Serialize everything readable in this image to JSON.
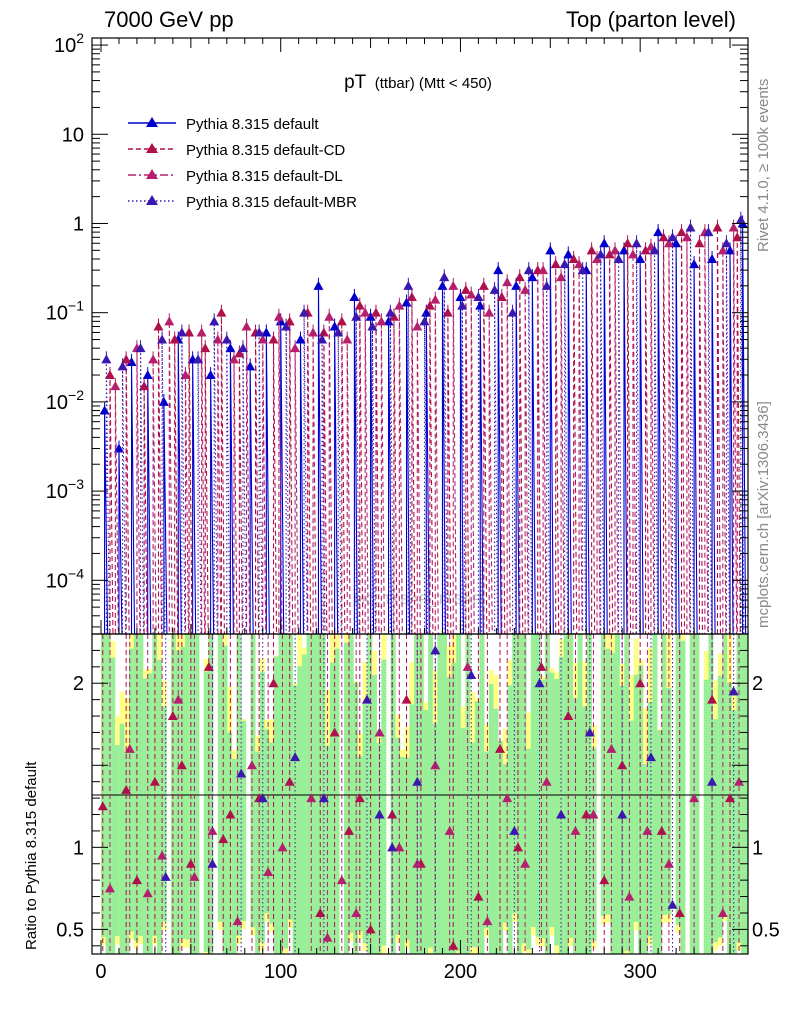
{
  "chart_data": {
    "type": "line",
    "header": {
      "left": "7000 GeV pp",
      "right": "Top (parton level)"
    },
    "title_main": "pT",
    "title_sub": "(ttbar) (Mtt < 450)",
    "side_texts": {
      "rivet": "Rivet 4.1.0, ≥ 100k events",
      "mcplots": "mcplots.cern.ch [arXiv:1306.3436]"
    },
    "watermark": "MC_TTBAR_TTBAR",
    "xlim": [
      -5,
      360
    ],
    "xticks": [
      0,
      100,
      200,
      300
    ],
    "main_ylim": [
      2.5e-05,
      120
    ],
    "main_yscale": "log",
    "main_ytick_labels": [
      {
        "v": 100,
        "base": "10",
        "exp": "2"
      },
      {
        "v": 10,
        "base": "10",
        "exp": ""
      },
      {
        "v": 1,
        "base": "1",
        "exp": ""
      },
      {
        "v": 0.1,
        "base": "10",
        "exp": "−1"
      },
      {
        "v": 0.01,
        "base": "10",
        "exp": "−2"
      },
      {
        "v": 0.001,
        "base": "10",
        "exp": "−3"
      },
      {
        "v": 0.0001,
        "base": "10",
        "exp": "−4"
      }
    ],
    "ratio_ylabel": "Ratio to Pythia 8.315 default",
    "ratio_ylim": [
      0.35,
      2.3
    ],
    "ratio_yticks": [
      0.5,
      1,
      2
    ],
    "ratio_ytick_labels": [
      "0.5",
      "1",
      "2"
    ],
    "series": [
      {
        "name": "Pythia 8.315 default",
        "color": "#0000cc",
        "style": "solid",
        "x": [
          2,
          10,
          17,
          26,
          35,
          43,
          51,
          61,
          72,
          83,
          92,
          100,
          111,
          121,
          130,
          141,
          150,
          160,
          170,
          181,
          190,
          200,
          211,
          221,
          231,
          240,
          250,
          260,
          270,
          280,
          291,
          300,
          310,
          320,
          330,
          340,
          350,
          357
        ],
        "y": [
          0.008,
          0.003,
          0.028,
          0.02,
          0.01,
          0.05,
          0.03,
          0.02,
          0.04,
          0.025,
          0.06,
          0.08,
          0.05,
          0.2,
          0.07,
          0.15,
          0.09,
          0.08,
          0.13,
          0.1,
          0.2,
          0.15,
          0.12,
          0.3,
          0.2,
          0.25,
          0.5,
          0.45,
          0.3,
          0.6,
          0.5,
          0.4,
          0.8,
          0.6,
          0.35,
          0.4,
          0.5,
          1.0
        ]
      },
      {
        "name": "Pythia 8.315 default-CD",
        "color": "#b0104a",
        "style": "dashed",
        "x": [
          5,
          14,
          24,
          32,
          41,
          49,
          58,
          67,
          77,
          86,
          96,
          105,
          115,
          124,
          134,
          144,
          153,
          163,
          173,
          183,
          193,
          203,
          213,
          223,
          233,
          243,
          253,
          263,
          273,
          283,
          293,
          303,
          313,
          323,
          333,
          343,
          354
        ],
        "y": [
          0.02,
          0.03,
          0.015,
          0.07,
          0.05,
          0.06,
          0.04,
          0.1,
          0.035,
          0.06,
          0.05,
          0.08,
          0.1,
          0.06,
          0.08,
          0.12,
          0.1,
          0.09,
          0.15,
          0.12,
          0.1,
          0.18,
          0.2,
          0.15,
          0.25,
          0.3,
          0.35,
          0.4,
          0.5,
          0.45,
          0.6,
          0.5,
          0.7,
          0.8,
          0.6,
          0.9,
          0.7
        ]
      },
      {
        "name": "Pythia 8.315 default-DL",
        "color": "#b5206e",
        "style": "dashed",
        "x": [
          8,
          20,
          29,
          38,
          47,
          56,
          65,
          74,
          81,
          90,
          99,
          108,
          118,
          127,
          137,
          147,
          156,
          166,
          176,
          186,
          196,
          206,
          216,
          226,
          236,
          246,
          256,
          266,
          276,
          286,
          296,
          306,
          316,
          326,
          336,
          346,
          352
        ],
        "y": [
          0.015,
          0.04,
          0.03,
          0.08,
          0.02,
          0.06,
          0.05,
          0.03,
          0.07,
          0.05,
          0.09,
          0.04,
          0.06,
          0.09,
          0.05,
          0.1,
          0.08,
          0.12,
          0.07,
          0.14,
          0.2,
          0.16,
          0.1,
          0.22,
          0.18,
          0.3,
          0.25,
          0.35,
          0.4,
          0.5,
          0.45,
          0.55,
          0.6,
          0.7,
          0.8,
          0.5,
          0.9
        ]
      },
      {
        "name": "Pythia 8.315 default-MBR",
        "color": "#3a18b0",
        "style": "dotted",
        "x": [
          3,
          12,
          22,
          34,
          45,
          54,
          63,
          70,
          79,
          88,
          103,
          113,
          123,
          132,
          142,
          151,
          161,
          171,
          180,
          191,
          201,
          210,
          219,
          229,
          238,
          248,
          258,
          268,
          278,
          288,
          298,
          308,
          318,
          328,
          338,
          348,
          356
        ],
        "y": [
          0.03,
          0.025,
          0.04,
          0.05,
          0.06,
          0.03,
          0.08,
          0.05,
          0.04,
          0.06,
          0.07,
          0.1,
          0.05,
          0.06,
          0.09,
          0.07,
          0.1,
          0.2,
          0.08,
          0.25,
          0.12,
          0.15,
          0.18,
          0.1,
          0.3,
          0.2,
          0.35,
          0.3,
          0.45,
          0.4,
          0.6,
          0.5,
          0.7,
          0.9,
          0.8,
          0.6,
          1.1
        ]
      }
    ],
    "ratio_series": [
      {
        "name": "Pythia 8.315 default-CD",
        "color": "#b0104a",
        "x": [
          1,
          14,
          20,
          30,
          40,
          45,
          50,
          60,
          68,
          72,
          88,
          96,
          105,
          122,
          130,
          138,
          144,
          150,
          162,
          170,
          178,
          196,
          210,
          222,
          232,
          245,
          260,
          270,
          280,
          290,
          300,
          312,
          322,
          340,
          350
        ],
        "y": [
          1.25,
          1.35,
          0.8,
          1.4,
          1.8,
          1.5,
          0.9,
          2.1,
          1.05,
          1.2,
          1.3,
          2.0,
          1.4,
          0.6,
          1.7,
          1.1,
          1.3,
          0.5,
          1.2,
          1.9,
          0.9,
          0.4,
          0.7,
          1.6,
          1.0,
          2.1,
          1.8,
          1.2,
          0.8,
          1.5,
          2.0,
          1.1,
          0.6,
          1.9,
          1.3
        ]
      },
      {
        "name": "Pythia 8.315 default-DL",
        "color": "#b5206e",
        "x": [
          5,
          16,
          26,
          34,
          43,
          52,
          62,
          76,
          84,
          93,
          101,
          117,
          126,
          134,
          142,
          155,
          166,
          176,
          186,
          194,
          204,
          215,
          226,
          236,
          248,
          264,
          274,
          284,
          294,
          304,
          316,
          330,
          346,
          355
        ],
        "y": [
          0.75,
          1.6,
          0.72,
          0.95,
          1.9,
          0.82,
          1.1,
          0.55,
          1.5,
          0.85,
          1.0,
          1.3,
          0.45,
          0.8,
          0.6,
          1.7,
          1.0,
          0.9,
          1.5,
          1.1,
          2.1,
          0.55,
          1.3,
          0.9,
          1.4,
          1.1,
          1.2,
          1.6,
          0.7,
          1.1,
          0.9,
          1.3,
          0.6,
          1.4
        ]
      },
      {
        "name": "Pythia 8.315 default-MBR",
        "color": "#3a18b0",
        "x": [
          36,
          62,
          78,
          90,
          108,
          124,
          148,
          155,
          162,
          176,
          186,
          206,
          230,
          244,
          256,
          272,
          290,
          306,
          318,
          340,
          352
        ],
        "y": [
          0.82,
          0.9,
          1.45,
          1.3,
          1.55,
          1.3,
          1.9,
          1.2,
          1.0,
          1.4,
          2.2,
          2.05,
          1.1,
          2.0,
          1.2,
          1.7,
          1.2,
          1.55,
          0.65,
          1.4,
          1.95
        ]
      }
    ]
  }
}
